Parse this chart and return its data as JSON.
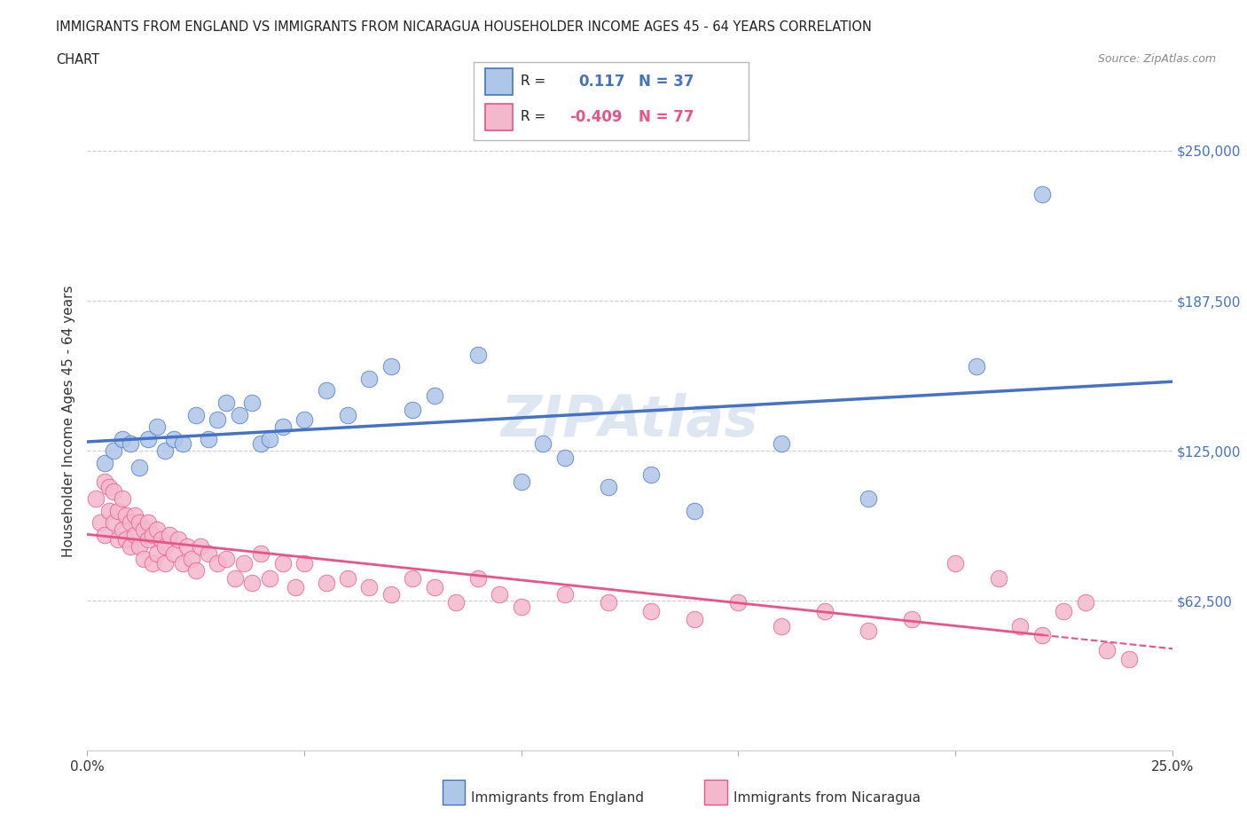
{
  "title_line1": "IMMIGRANTS FROM ENGLAND VS IMMIGRANTS FROM NICARAGUA HOUSEHOLDER INCOME AGES 45 - 64 YEARS CORRELATION",
  "title_line2": "CHART",
  "source": "Source: ZipAtlas.com",
  "ylabel": "Householder Income Ages 45 - 64 years",
  "xlim": [
    0.0,
    0.25
  ],
  "ylim": [
    0,
    275000
  ],
  "ytick_values": [
    0,
    62500,
    125000,
    187500,
    250000
  ],
  "ytick_labels": [
    "",
    "$62,500",
    "$125,000",
    "$187,500",
    "$250,000"
  ],
  "england_color": "#aec6e8",
  "england_line_color": "#4472c4",
  "nicaragua_color": "#f4b8cc",
  "nicaragua_line_color": "#e8538a",
  "england_R": 0.117,
  "england_N": 37,
  "nicaragua_R": -0.409,
  "nicaragua_N": 77,
  "england_scatter_x": [
    0.004,
    0.006,
    0.008,
    0.01,
    0.012,
    0.014,
    0.016,
    0.018,
    0.02,
    0.022,
    0.025,
    0.028,
    0.03,
    0.032,
    0.035,
    0.038,
    0.04,
    0.042,
    0.045,
    0.05,
    0.055,
    0.06,
    0.065,
    0.07,
    0.075,
    0.08,
    0.09,
    0.1,
    0.105,
    0.11,
    0.12,
    0.13,
    0.14,
    0.16,
    0.18,
    0.205,
    0.22
  ],
  "england_scatter_y": [
    120000,
    125000,
    130000,
    128000,
    118000,
    130000,
    135000,
    125000,
    130000,
    128000,
    140000,
    130000,
    138000,
    145000,
    140000,
    145000,
    128000,
    130000,
    135000,
    138000,
    150000,
    140000,
    155000,
    160000,
    142000,
    148000,
    165000,
    112000,
    128000,
    122000,
    110000,
    115000,
    100000,
    128000,
    105000,
    160000,
    232000
  ],
  "nicaragua_scatter_x": [
    0.002,
    0.003,
    0.004,
    0.004,
    0.005,
    0.005,
    0.006,
    0.006,
    0.007,
    0.007,
    0.008,
    0.008,
    0.009,
    0.009,
    0.01,
    0.01,
    0.011,
    0.011,
    0.012,
    0.012,
    0.013,
    0.013,
    0.014,
    0.014,
    0.015,
    0.015,
    0.016,
    0.016,
    0.017,
    0.018,
    0.018,
    0.019,
    0.02,
    0.021,
    0.022,
    0.023,
    0.024,
    0.025,
    0.026,
    0.028,
    0.03,
    0.032,
    0.034,
    0.036,
    0.038,
    0.04,
    0.042,
    0.045,
    0.048,
    0.05,
    0.055,
    0.06,
    0.065,
    0.07,
    0.075,
    0.08,
    0.085,
    0.09,
    0.095,
    0.1,
    0.11,
    0.12,
    0.13,
    0.14,
    0.15,
    0.16,
    0.17,
    0.18,
    0.19,
    0.2,
    0.21,
    0.215,
    0.22,
    0.225,
    0.23,
    0.235,
    0.24
  ],
  "nicaragua_scatter_y": [
    105000,
    95000,
    112000,
    90000,
    100000,
    110000,
    95000,
    108000,
    88000,
    100000,
    92000,
    105000,
    88000,
    98000,
    85000,
    95000,
    90000,
    98000,
    85000,
    95000,
    92000,
    80000,
    88000,
    95000,
    78000,
    90000,
    82000,
    92000,
    88000,
    78000,
    85000,
    90000,
    82000,
    88000,
    78000,
    85000,
    80000,
    75000,
    85000,
    82000,
    78000,
    80000,
    72000,
    78000,
    70000,
    82000,
    72000,
    78000,
    68000,
    78000,
    70000,
    72000,
    68000,
    65000,
    72000,
    68000,
    62000,
    72000,
    65000,
    60000,
    65000,
    62000,
    58000,
    55000,
    62000,
    52000,
    58000,
    50000,
    55000,
    78000,
    72000,
    52000,
    48000,
    58000,
    62000,
    42000,
    38000
  ]
}
